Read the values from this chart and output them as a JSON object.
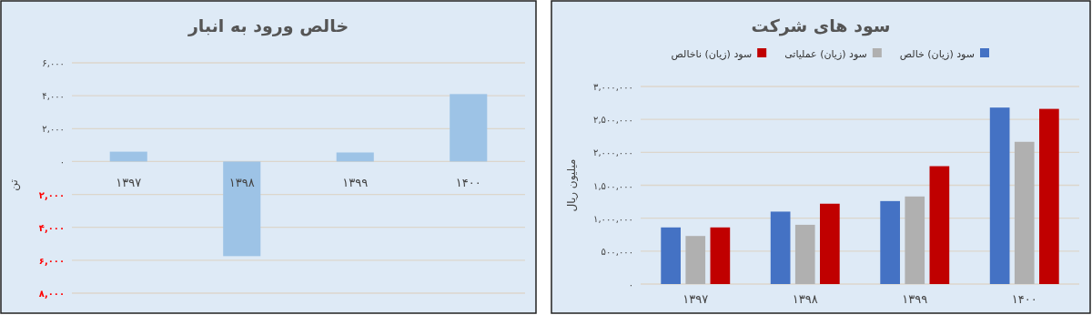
{
  "chart_data": [
    {
      "type": "bar",
      "title": "خالص ورود به انبار",
      "ylabel": "تن",
      "categories": [
        "۱۳۹۷",
        "۱۳۹۸",
        "۱۳۹۹",
        "۱۴۰۰"
      ],
      "series": [
        {
          "color": "#9dc3e6",
          "values": [
            600,
            -5750,
            550,
            4100
          ]
        }
      ],
      "ylim": [
        -8000,
        6000
      ],
      "yticks": [
        {
          "value": -8000,
          "label": "۸,۰۰۰"
        },
        {
          "value": -6000,
          "label": "۶,۰۰۰"
        },
        {
          "value": -4000,
          "label": "۴,۰۰۰"
        },
        {
          "value": -2000,
          "label": "۲,۰۰۰"
        },
        {
          "value": 0,
          "label": "۰"
        },
        {
          "value": 2000,
          "label": "۲,۰۰۰"
        },
        {
          "value": 4000,
          "label": "۴,۰۰۰"
        },
        {
          "value": 6000,
          "label": "۶,۰۰۰"
        }
      ],
      "grid": "y"
    },
    {
      "type": "bar",
      "title": "سود های شرکت",
      "ylabel": "میلیون ریال",
      "categories": [
        "۱۳۹۷",
        "۱۳۹۸",
        "۱۳۹۹",
        "۱۴۰۰"
      ],
      "series": [
        {
          "name": "سود (زیان) خالص",
          "color": "#4472c4",
          "values": [
            860000,
            1100000,
            1260000,
            2680000
          ]
        },
        {
          "name": "سود (زیان) عملیاتی",
          "color": "#b0b0b0",
          "values": [
            730000,
            900000,
            1330000,
            2160000
          ]
        },
        {
          "name": "سود (زیان) ناخالص",
          "color": "#c00000",
          "values": [
            860000,
            1220000,
            1790000,
            2660000
          ]
        }
      ],
      "ylim": [
        0,
        3000000
      ],
      "yticks": [
        {
          "value": 0,
          "label": "۰"
        },
        {
          "value": 500000,
          "label": "۵۰۰,۰۰۰"
        },
        {
          "value": 1000000,
          "label": "۱,۰۰۰,۰۰۰"
        },
        {
          "value": 1500000,
          "label": "۱,۵۰۰,۰۰۰"
        },
        {
          "value": 2000000,
          "label": "۲,۰۰۰,۰۰۰"
        },
        {
          "value": 2500000,
          "label": "۲,۵۰۰,۰۰۰"
        },
        {
          "value": 3000000,
          "label": "۳,۰۰۰,۰۰۰"
        }
      ],
      "grid": "y",
      "legend": "top"
    }
  ]
}
